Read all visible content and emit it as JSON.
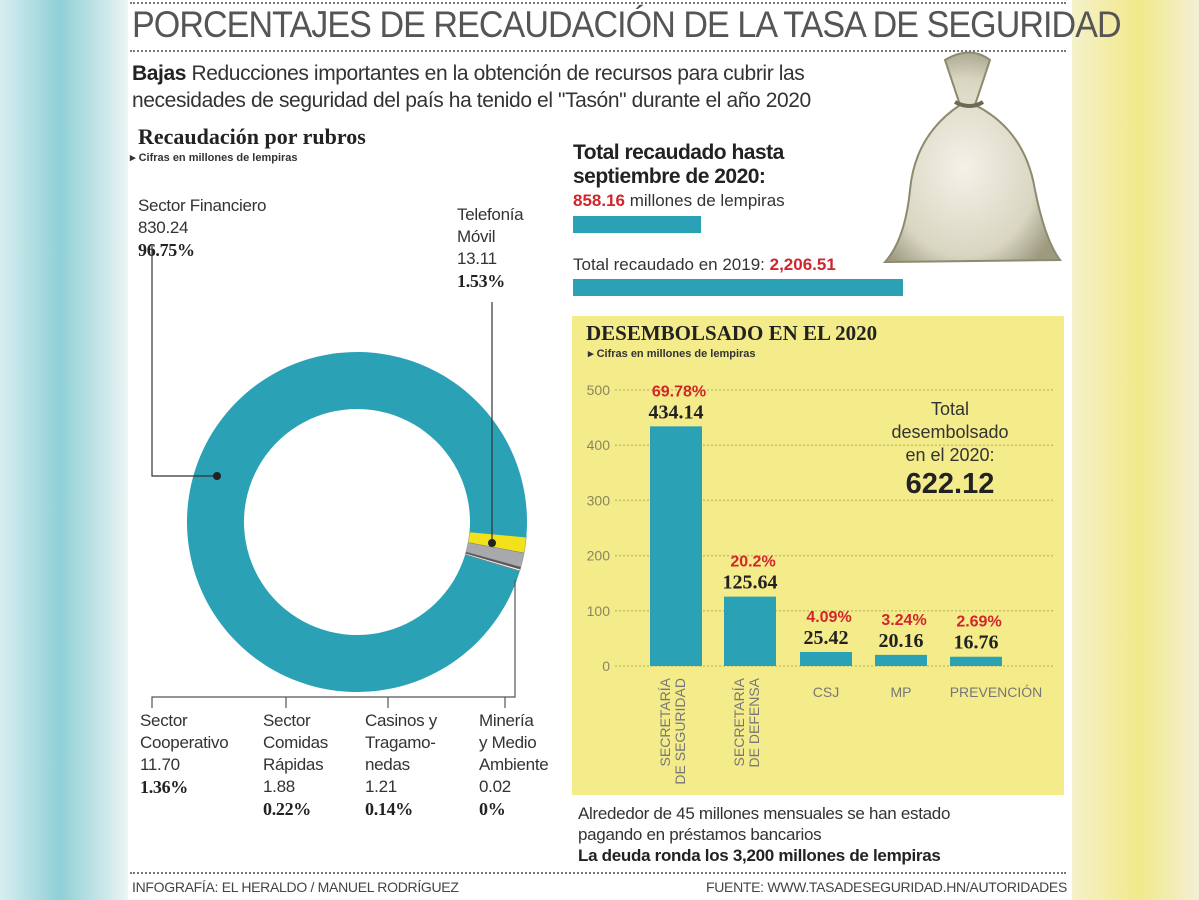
{
  "title": "PORCENTAJES DE RECAUDACIÓN DE LA TASA DE SEGURIDAD",
  "intro": {
    "lead": "Bajas",
    "text": " Reducciones importantes en la obtención de recursos para cubrir las necesidades de seguridad del país ha tenido el \"Tasón\" durante el año 2020"
  },
  "recaudacion": {
    "heading": "Recaudación por rubros",
    "note": "Cifras en millones de lempiras"
  },
  "total": {
    "heading_line1": "Total recaudado hasta",
    "heading_line2": "septiembre de 2020:",
    "value_2020": "858.16",
    "value_2020_suffix": " millones de lempiras",
    "label_2019": "Total recaudado en 2019: ",
    "value_2019": "2,206.51"
  },
  "desembolsado": {
    "heading": "DESEMBOLSADO EN EL 2020",
    "note": "Cifras en millones de lempiras",
    "total_l1": "Total",
    "total_l2": "desembolsado",
    "total_l3": "en el 2020:",
    "total_value": "622.12"
  },
  "notes": {
    "line1": "Alrededor de 45 millones mensuales se han estado",
    "line2": "pagando en préstamos bancarios",
    "line3": "La deuda ronda los 3,200 millones de lempiras"
  },
  "footer": {
    "credit": "INFOGRAFÍA: EL HERALDO / MANUEL RODRÍGUEZ",
    "source": "FUENTE: WWW.TASADESEGURIDAD.HN/AUTORIDADES"
  },
  "colors": {
    "teal": "#2aa1b5",
    "yellow": "#f4eb8a",
    "red": "#d0262c"
  },
  "chart_data": [
    {
      "type": "pie",
      "title": "Recaudación por rubros",
      "unit": "millones de lempiras",
      "donut": true,
      "slices": [
        {
          "name": "Telefonía Móvil",
          "name_l1": "Telefonía",
          "name_l2": "Móvil",
          "value": 13.11,
          "value_text": "13.11",
          "pct": "1.53%",
          "color": "#f2e21c"
        },
        {
          "name": "Sector Cooperativo",
          "name_l1": "Sector",
          "name_l2": "Cooperativo",
          "value": 11.7,
          "value_text": "11.70",
          "pct": "1.36%",
          "color": "#a7a9ac"
        },
        {
          "name": "Sector Comidas Rápidas",
          "name_l1": "Sector",
          "name_l2": "Comidas",
          "name_l3": "Rápidas",
          "value": 1.88,
          "value_text": "1.88",
          "pct": "0.22%",
          "color": "#555555"
        },
        {
          "name": "Casinos y Tragamonedas",
          "name_l1": "Casinos y",
          "name_l2": "Tragamo-",
          "name_l3": "nedas",
          "value": 1.21,
          "value_text": "1.21",
          "pct": "0.14%",
          "color": "#ffffff"
        },
        {
          "name": "Minería y Medio Ambiente",
          "name_l1": "Minería",
          "name_l2": "y Medio",
          "name_l3": "Ambiente",
          "value": 0.02,
          "value_text": "0.02",
          "pct": "0%",
          "color": "#888888"
        },
        {
          "name": "Sector Financiero",
          "name_l1": "Sector Financiero",
          "value": 830.24,
          "value_text": "830.24",
          "pct": "96.75%",
          "color": "#2aa1b5"
        }
      ]
    },
    {
      "type": "bar",
      "title": "DESEMBOLSADO EN EL 2020",
      "ylim": [
        0,
        500
      ],
      "yticks": [
        "0",
        "100",
        "200",
        "300",
        "400",
        "500"
      ],
      "grid": true,
      "categories": [
        [
          "SECRETARÍA",
          "DE SEGURIDAD"
        ],
        [
          "SECRETARÍA",
          "DE DEFENSA"
        ],
        [
          "CSJ"
        ],
        [
          "MP"
        ],
        [
          "PREVENCIÓN"
        ]
      ],
      "values": [
        434.14,
        125.64,
        25.42,
        20.16,
        16.76
      ],
      "value_labels": [
        "434.14",
        "125.64",
        "25.42",
        "20.16",
        "16.76"
      ],
      "pct_labels": [
        "69.78%",
        "20.2%",
        "4.09%",
        "3.24%",
        "2.69%"
      ]
    },
    {
      "type": "bar",
      "orientation": "horizontal",
      "title": "Total recaudado",
      "categories": [
        "2020 (hasta septiembre)",
        "2019"
      ],
      "values": [
        858.16,
        2206.51
      ]
    }
  ]
}
